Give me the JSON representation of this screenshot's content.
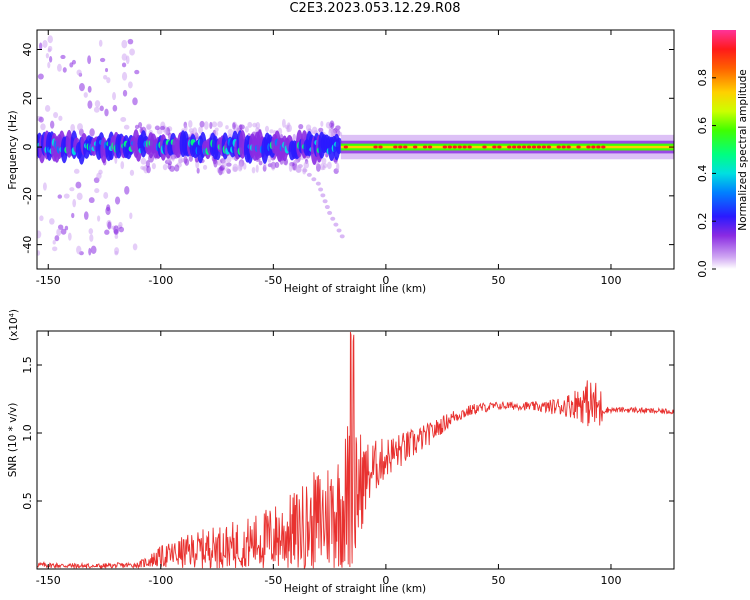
{
  "title": "C2E3.2023.053.12.29.R08",
  "colors": {
    "snr_line": "#e8312f",
    "spectrogram_bg": "#ffffff",
    "colormap": [
      "#ffffff",
      "#d9b8f5",
      "#8a2be2",
      "#1a1aff",
      "#00bfff",
      "#00ff7f",
      "#7cff00",
      "#ffff00",
      "#ff8c00",
      "#ff1a1a",
      "#ff3399"
    ]
  },
  "chart_data": [
    {
      "type": "heatmap",
      "title": "",
      "xlabel": "Height of straight line (km)",
      "ylabel": "Frequency (Hz)",
      "xlim": [
        -155,
        128
      ],
      "ylim": [
        -50,
        48
      ],
      "x_ticks": [
        -150,
        -100,
        -50,
        0,
        50,
        100
      ],
      "y_ticks": [
        -40,
        -20,
        0,
        20,
        40
      ],
      "colorbar": {
        "label": "Normalized spectral amplitude",
        "range": [
          0,
          1
        ],
        "ticks": [
          "0.0",
          "0.2",
          "0.4",
          "0.6",
          "0.8"
        ]
      },
      "features": {
        "main_band_center_hz": 0,
        "broad_scatter_x_range": [
          -155,
          -20
        ],
        "narrow_line_x_range": [
          -20,
          128
        ],
        "diagonal_trail": [
          [
            -40,
            -6
          ],
          [
            -30,
            -15
          ],
          [
            -25,
            -27
          ],
          [
            -18,
            -39
          ]
        ]
      }
    },
    {
      "type": "line",
      "title": "",
      "xlabel": "Height of straight line (km)",
      "ylabel": "SNR (10 * v/v)",
      "y_multiplier": "(x10⁴)",
      "xlim": [
        -155,
        128
      ],
      "ylim": [
        0,
        1.75
      ],
      "x_ticks": [
        -150,
        -100,
        -50,
        0,
        50,
        100
      ],
      "y_ticks": [
        "0.5",
        "1.0",
        "1.5"
      ],
      "series": [
        {
          "x": [
            -155,
            -130,
            -110,
            -100,
            -90,
            -80,
            -70,
            -60,
            -50,
            -40,
            -30,
            -20,
            -15,
            -10,
            -5,
            0,
            10,
            20,
            30,
            40,
            50,
            60,
            70,
            80,
            85,
            90,
            95,
            97,
            100,
            110,
            120,
            128
          ],
          "values": [
            0.03,
            0.02,
            0.03,
            0.09,
            0.12,
            0.15,
            0.17,
            0.19,
            0.23,
            0.28,
            0.35,
            0.45,
            0.55,
            0.65,
            0.75,
            0.82,
            0.9,
            1.0,
            1.12,
            1.18,
            1.2,
            1.2,
            1.19,
            1.2,
            1.22,
            1.22,
            1.18,
            1.17,
            1.17,
            1.17,
            1.16,
            1.16
          ],
          "noise": [
            0.02,
            0.02,
            0.02,
            0.08,
            0.12,
            0.15,
            0.17,
            0.2,
            0.25,
            0.3,
            0.4,
            0.45,
            0.7,
            0.3,
            0.2,
            0.15,
            0.12,
            0.08,
            0.05,
            0.04,
            0.03,
            0.03,
            0.04,
            0.08,
            0.12,
            0.18,
            0.2,
            0.03,
            0.02,
            0.02,
            0.02,
            0.02
          ]
        }
      ]
    }
  ]
}
